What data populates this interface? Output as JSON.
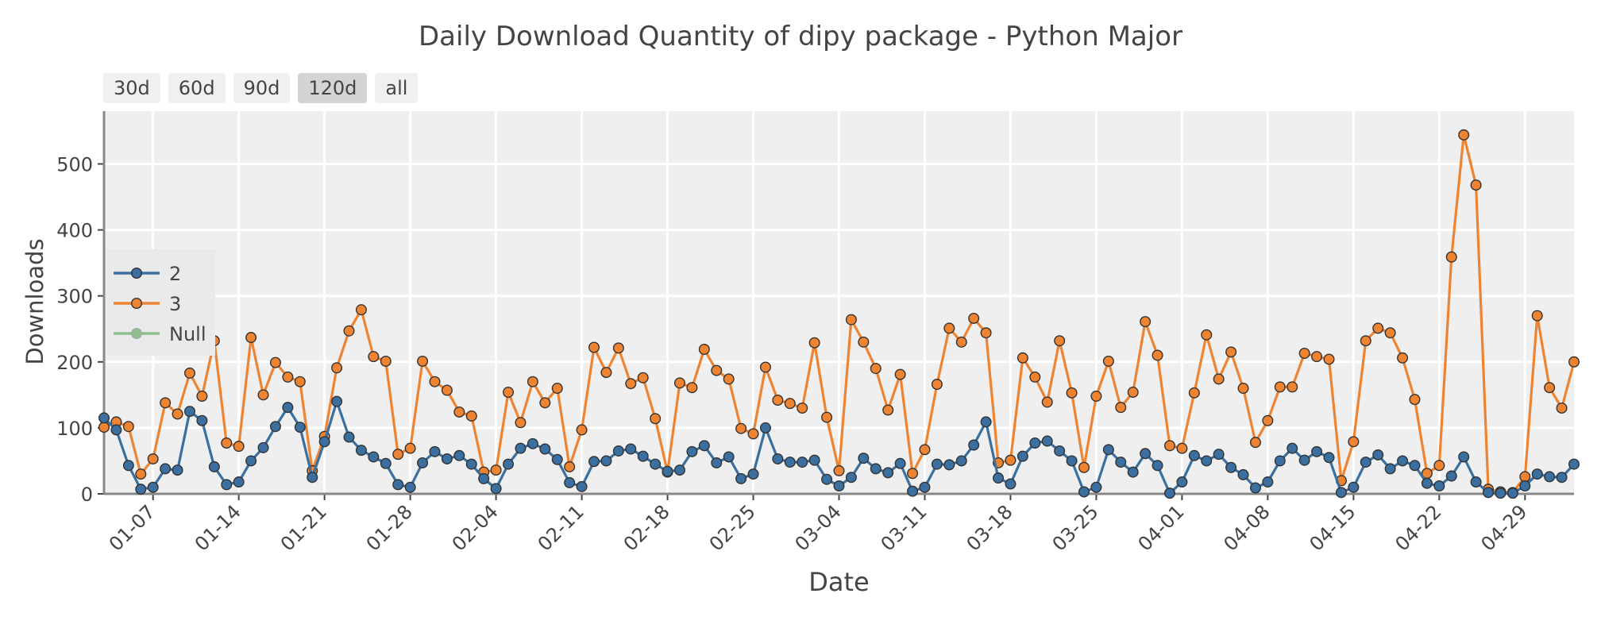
{
  "title": "Daily Download Quantity of dipy package - Python Major",
  "range_buttons": [
    {
      "label": "30d",
      "active": false
    },
    {
      "label": "60d",
      "active": false
    },
    {
      "label": "90d",
      "active": false
    },
    {
      "label": "120d",
      "active": true
    },
    {
      "label": "all",
      "active": false
    }
  ],
  "chart_data": {
    "type": "line",
    "title": "Daily Download Quantity of dipy package - Python Major",
    "xlabel": "Date",
    "ylabel": "Downloads",
    "ylim": [
      0,
      580
    ],
    "y_ticks": [
      0,
      100,
      200,
      300,
      400,
      500
    ],
    "x_start": "2018-01-03",
    "x_ticks": [
      "01-07",
      "01-14",
      "01-21",
      "01-28",
      "02-04",
      "02-11",
      "02-18",
      "02-25",
      "03-04",
      "03-11",
      "03-18",
      "03-25",
      "04-01",
      "04-08",
      "04-15",
      "04-22",
      "04-29"
    ],
    "grid": true,
    "legend_position": "left",
    "series": [
      {
        "name": "2",
        "color": "#3a6f9f",
        "values": [
          115,
          97,
          43,
          7,
          10,
          38,
          36,
          125,
          111,
          41,
          14,
          18,
          50,
          70,
          102,
          131,
          101,
          25,
          79,
          140,
          86,
          66,
          56,
          46,
          14,
          10,
          47,
          64,
          53,
          58,
          45,
          23,
          8,
          45,
          69,
          76,
          68,
          52,
          17,
          11,
          49,
          50,
          65,
          68,
          57,
          45,
          34,
          36,
          64,
          73,
          47,
          56,
          23,
          30,
          100,
          53,
          48,
          48,
          51,
          22,
          12,
          25,
          54,
          38,
          32,
          46,
          4,
          10,
          45,
          44,
          50,
          74,
          109,
          24,
          15,
          57,
          77,
          80,
          65,
          50,
          3,
          10,
          67,
          48,
          33,
          61,
          43,
          1,
          18,
          58,
          50,
          60,
          40,
          29,
          9,
          18,
          50,
          69,
          51,
          64,
          55,
          2,
          10,
          48,
          59,
          38,
          50,
          43,
          16,
          12,
          27,
          56,
          18,
          2,
          1,
          1,
          12,
          30,
          26,
          25,
          45
        ]
      },
      {
        "name": "3",
        "color": "#ee8431",
        "values": [
          101,
          109,
          102,
          30,
          53,
          138,
          121,
          183,
          148,
          232,
          77,
          72,
          237,
          150,
          199,
          177,
          170,
          35,
          87,
          191,
          247,
          279,
          208,
          201,
          60,
          69,
          201,
          170,
          157,
          124,
          118,
          33,
          36,
          154,
          108,
          170,
          138,
          160,
          41,
          97,
          222,
          184,
          221,
          167,
          176,
          114,
          33,
          168,
          161,
          219,
          187,
          174,
          99,
          91,
          192,
          142,
          137,
          130,
          229,
          116,
          35,
          264,
          230,
          190,
          127,
          181,
          31,
          67,
          166,
          251,
          230,
          266,
          244,
          47,
          51,
          206,
          177,
          139,
          232,
          153,
          40,
          148,
          201,
          131,
          154,
          261,
          210,
          73,
          69,
          153,
          241,
          174,
          215,
          160,
          78,
          111,
          162,
          162,
          213,
          208,
          204,
          20,
          79,
          232,
          251,
          244,
          206,
          143,
          31,
          43,
          359,
          544,
          468,
          7,
          3,
          2,
          26,
          270,
          161,
          130,
          200
        ]
      },
      {
        "name": "Null",
        "color": "#8fbf8f",
        "values": []
      }
    ]
  }
}
